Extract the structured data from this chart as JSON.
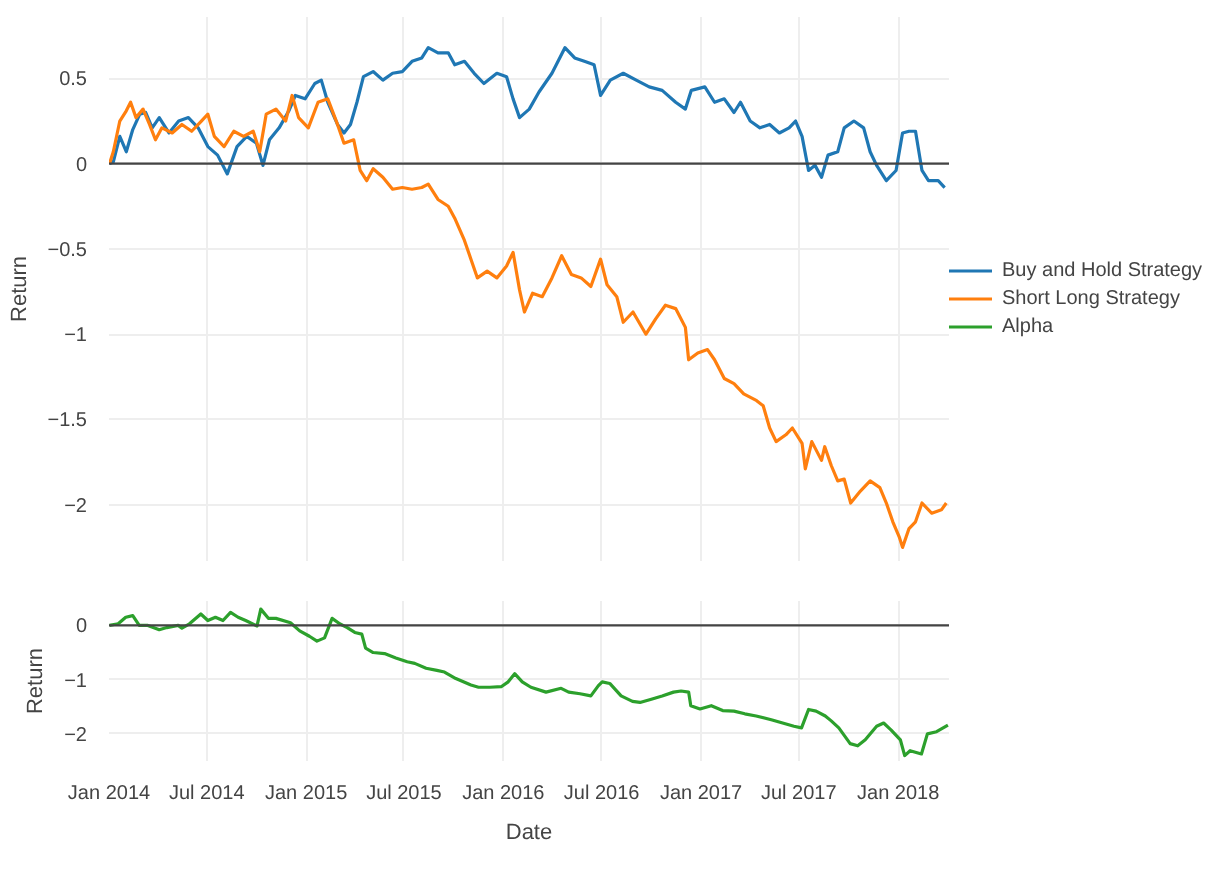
{
  "chart_data": [
    {
      "type": "line",
      "ylabel": "Return",
      "xlim": [
        "2014-01-01",
        "2018-04-05"
      ],
      "ylim": [
        -2.33,
        0.86
      ],
      "yticks": [
        0.5,
        0,
        {
          "value": -0.5,
          "label": "−0.5"
        },
        {
          "value": -1,
          "label": "−1"
        },
        {
          "value": -1.5,
          "label": "−1.5"
        },
        {
          "value": -2,
          "label": "−2"
        }
      ],
      "xticks": [
        {
          "value": "2014-01-01",
          "label": null
        },
        {
          "value": "2014-07-01",
          "label": null
        },
        {
          "value": "2015-01-01",
          "label": null
        },
        {
          "value": "2015-07-01",
          "label": null
        },
        {
          "value": "2016-01-01",
          "label": null
        },
        {
          "value": "2016-07-01",
          "label": null
        },
        {
          "value": "2017-01-01",
          "label": null
        },
        {
          "value": "2017-07-01",
          "label": null
        },
        {
          "value": "2018-01-01",
          "label": null
        }
      ],
      "tick_labels": "y",
      "grid": true,
      "legend": "right",
      "ref_lines": [
        {
          "axis": "y",
          "value": 0,
          "color": "#444444"
        }
      ],
      "series": [
        {
          "name": "Buy and Hold Strategy",
          "color": "#1f77b4",
          "x": [
            "2014-01-02",
            "2014-01-09",
            "2014-01-21",
            "2014-02-02",
            "2014-02-14",
            "2014-02-27",
            "2014-03-10",
            "2014-03-22",
            "2014-04-04",
            "2014-04-22",
            "2014-05-10",
            "2014-05-28",
            "2014-06-15",
            "2014-07-03",
            "2014-07-21",
            "2014-08-08",
            "2014-08-26",
            "2014-09-13",
            "2014-10-01",
            "2014-10-13",
            "2014-10-25",
            "2014-11-12",
            "2014-11-30",
            "2014-12-12",
            "2014-12-30",
            "2015-01-17",
            "2015-01-29",
            "2015-02-10",
            "2015-02-28",
            "2015-03-12",
            "2015-03-24",
            "2015-04-05",
            "2015-04-17",
            "2015-05-05",
            "2015-05-23",
            "2015-06-10",
            "2015-06-28",
            "2015-07-16",
            "2015-08-03",
            "2015-08-15",
            "2015-09-02",
            "2015-09-21",
            "2015-10-03",
            "2015-10-21",
            "2015-11-08",
            "2015-11-26",
            "2015-12-20",
            "2016-01-07",
            "2016-01-19",
            "2016-01-31",
            "2016-02-18",
            "2016-03-07",
            "2016-03-31",
            "2016-04-24",
            "2016-05-12",
            "2016-05-30",
            "2016-06-17",
            "2016-06-29",
            "2016-07-17",
            "2016-08-10",
            "2016-09-03",
            "2016-09-27",
            "2016-10-21",
            "2016-11-15",
            "2016-12-03",
            "2016-12-14",
            "2017-01-08",
            "2017-01-26",
            "2017-02-13",
            "2017-03-03",
            "2017-03-15",
            "2017-04-02",
            "2017-04-20",
            "2017-05-08",
            "2017-05-26",
            "2017-06-13",
            "2017-06-25",
            "2017-07-07",
            "2017-07-19",
            "2017-07-31",
            "2017-08-12",
            "2017-08-24",
            "2017-09-11",
            "2017-09-23",
            "2017-10-11",
            "2017-10-29",
            "2017-11-10",
            "2017-11-22",
            "2017-12-10",
            "2017-12-28",
            "2018-01-09",
            "2018-01-21",
            "2018-02-02",
            "2018-02-14",
            "2018-02-26",
            "2018-03-16",
            "2018-03-28"
          ],
          "values": [
            0,
            0.01,
            0.16,
            0.07,
            0.2,
            0.29,
            0.3,
            0.21,
            0.27,
            0.18,
            0.25,
            0.27,
            0.21,
            0.1,
            0.05,
            -0.06,
            0.1,
            0.16,
            0.12,
            -0.01,
            0.14,
            0.21,
            0.31,
            0.4,
            0.38,
            0.47,
            0.49,
            0.36,
            0.23,
            0.18,
            0.23,
            0.36,
            0.51,
            0.54,
            0.49,
            0.53,
            0.54,
            0.6,
            0.62,
            0.68,
            0.65,
            0.65,
            0.58,
            0.6,
            0.53,
            0.47,
            0.53,
            0.51,
            0.38,
            0.27,
            0.32,
            0.42,
            0.53,
            0.68,
            0.62,
            0.6,
            0.58,
            0.4,
            0.49,
            0.53,
            0.49,
            0.45,
            0.43,
            0.36,
            0.32,
            0.43,
            0.45,
            0.36,
            0.38,
            0.3,
            0.36,
            0.25,
            0.21,
            0.23,
            0.18,
            0.21,
            0.25,
            0.16,
            -0.04,
            -0.01,
            -0.08,
            0.05,
            0.07,
            0.21,
            0.25,
            0.21,
            0.07,
            -0.01,
            -0.1,
            -0.04,
            0.18,
            0.19,
            0.19,
            -0.04,
            -0.1,
            -0.1,
            -0.14
          ]
        },
        {
          "name": "Short Long Strategy",
          "color": "#ff7f0e",
          "x": [
            "2014-01-02",
            "2014-01-09",
            "2014-01-21",
            "2014-02-02",
            "2014-02-10",
            "2014-02-20",
            "2014-03-05",
            "2014-03-17",
            "2014-03-28",
            "2014-04-09",
            "2014-04-28",
            "2014-05-16",
            "2014-06-03",
            "2014-06-21",
            "2014-07-03",
            "2014-07-15",
            "2014-08-02",
            "2014-08-20",
            "2014-09-07",
            "2014-09-25",
            "2014-10-07",
            "2014-10-19",
            "2014-11-06",
            "2014-11-24",
            "2014-12-06",
            "2014-12-18",
            "2015-01-05",
            "2015-01-23",
            "2015-02-10",
            "2015-02-28",
            "2015-03-12",
            "2015-03-30",
            "2015-04-11",
            "2015-04-23",
            "2015-05-05",
            "2015-05-23",
            "2015-06-10",
            "2015-06-28",
            "2015-07-16",
            "2015-08-03",
            "2015-08-15",
            "2015-09-02",
            "2015-09-21",
            "2015-10-03",
            "2015-10-21",
            "2015-11-02",
            "2015-11-14",
            "2015-12-02",
            "2015-12-20",
            "2016-01-07",
            "2016-01-19",
            "2016-01-31",
            "2016-02-09",
            "2016-02-24",
            "2016-03-13",
            "2016-03-31",
            "2016-04-18",
            "2016-05-06",
            "2016-05-24",
            "2016-06-11",
            "2016-06-29",
            "2016-07-11",
            "2016-07-29",
            "2016-08-10",
            "2016-08-28",
            "2016-09-21",
            "2016-10-09",
            "2016-10-27",
            "2016-11-15",
            "2016-12-03",
            "2016-12-09",
            "2016-12-26",
            "2017-01-13",
            "2017-01-26",
            "2017-02-13",
            "2017-03-03",
            "2017-03-21",
            "2017-04-14",
            "2017-04-26",
            "2017-05-08",
            "2017-05-20",
            "2017-06-07",
            "2017-06-19",
            "2017-07-07",
            "2017-07-13",
            "2017-07-25",
            "2017-08-12",
            "2017-08-18",
            "2017-08-30",
            "2017-09-11",
            "2017-09-23",
            "2017-10-05",
            "2017-10-23",
            "2017-11-10",
            "2017-11-28",
            "2017-12-10",
            "2017-12-22",
            "2018-01-03",
            "2018-01-09",
            "2018-01-21",
            "2018-02-02",
            "2018-02-14",
            "2018-03-04",
            "2018-03-22",
            "2018-03-31"
          ],
          "values": [
            0,
            0.07,
            0.25,
            0.31,
            0.36,
            0.27,
            0.32,
            0.23,
            0.14,
            0.21,
            0.18,
            0.23,
            0.19,
            0.25,
            0.29,
            0.16,
            0.1,
            0.19,
            0.16,
            0.19,
            0.07,
            0.29,
            0.32,
            0.25,
            0.4,
            0.27,
            0.21,
            0.36,
            0.38,
            0.23,
            0.12,
            0.14,
            -0.04,
            -0.1,
            -0.03,
            -0.08,
            -0.15,
            -0.14,
            -0.15,
            -0.14,
            -0.12,
            -0.21,
            -0.25,
            -0.32,
            -0.45,
            -0.56,
            -0.67,
            -0.63,
            -0.67,
            -0.6,
            -0.52,
            -0.74,
            -0.87,
            -0.76,
            -0.78,
            -0.67,
            -0.54,
            -0.65,
            -0.67,
            -0.72,
            -0.56,
            -0.71,
            -0.78,
            -0.93,
            -0.87,
            -1.0,
            -0.91,
            -0.83,
            -0.85,
            -0.96,
            -1.15,
            -1.11,
            -1.09,
            -1.15,
            -1.26,
            -1.29,
            -1.35,
            -1.39,
            -1.42,
            -1.55,
            -1.63,
            -1.59,
            -1.55,
            -1.64,
            -1.79,
            -1.63,
            -1.74,
            -1.66,
            -1.77,
            -1.86,
            -1.85,
            -1.99,
            -1.92,
            -1.86,
            -1.9,
            -1.99,
            -2.1,
            -2.19,
            -2.25,
            -2.14,
            -2.1,
            -1.99,
            -2.05,
            -2.03,
            -1.99
          ]
        }
      ]
    },
    {
      "type": "line",
      "xlabel": "Date",
      "ylabel": "Return",
      "xlim": [
        "2014-01-01",
        "2018-04-05"
      ],
      "ylim": [
        -2.5,
        0.45
      ],
      "yticks": [
        0,
        {
          "value": -1,
          "label": "−1"
        },
        {
          "value": -2,
          "label": "−2"
        }
      ],
      "xticks": [
        {
          "value": "2014-01-01",
          "label": "Jan 2014"
        },
        {
          "value": "2014-07-01",
          "label": "Jul 2014"
        },
        {
          "value": "2015-01-01",
          "label": "Jan 2015"
        },
        {
          "value": "2015-07-01",
          "label": "Jul 2015"
        },
        {
          "value": "2016-01-01",
          "label": "Jan 2016"
        },
        {
          "value": "2016-07-01",
          "label": "Jul 2016"
        },
        {
          "value": "2017-01-01",
          "label": "Jan 2017"
        },
        {
          "value": "2017-07-01",
          "label": "Jul 2017"
        },
        {
          "value": "2018-01-01",
          "label": "Jan 2018"
        }
      ],
      "grid": true,
      "legend": "right",
      "ref_lines": [
        {
          "axis": "y",
          "value": 0,
          "color": "#444444"
        }
      ],
      "series": [
        {
          "name": "Alpha",
          "color": "#2ca02c",
          "x": [
            "2014-01-02",
            "2014-01-18",
            "2014-02-01",
            "2014-02-14",
            "2014-02-26",
            "2014-03-14",
            "2014-04-04",
            "2014-04-18",
            "2014-05-09",
            "2014-05-16",
            "2014-05-30",
            "2014-06-20",
            "2014-07-03",
            "2014-07-17",
            "2014-07-31",
            "2014-08-14",
            "2014-08-28",
            "2014-09-11",
            "2014-10-02",
            "2014-10-09",
            "2014-10-23",
            "2014-11-06",
            "2014-12-03",
            "2014-12-20",
            "2015-01-07",
            "2015-01-21",
            "2015-02-04",
            "2015-02-18",
            "2015-03-04",
            "2015-03-18",
            "2015-04-01",
            "2015-04-14",
            "2015-04-21",
            "2015-05-05",
            "2015-05-26",
            "2015-06-16",
            "2015-07-07",
            "2015-07-21",
            "2015-08-11",
            "2015-08-31",
            "2015-09-14",
            "2015-10-05",
            "2015-10-19",
            "2015-11-02",
            "2015-11-16",
            "2015-12-07",
            "2015-12-28",
            "2016-01-10",
            "2016-01-22",
            "2016-02-05",
            "2016-02-21",
            "2016-03-20",
            "2016-04-17",
            "2016-05-01",
            "2016-05-22",
            "2016-06-11",
            "2016-06-25",
            "2016-07-02",
            "2016-07-16",
            "2016-08-06",
            "2016-08-27",
            "2016-09-10",
            "2016-10-01",
            "2016-10-21",
            "2016-11-11",
            "2016-11-25",
            "2016-12-09",
            "2016-12-13",
            "2016-12-30",
            "2017-01-20",
            "2017-02-10",
            "2017-03-03",
            "2017-03-23",
            "2017-04-13",
            "2017-05-11",
            "2017-06-01",
            "2017-06-22",
            "2017-07-06",
            "2017-07-19",
            "2017-08-02",
            "2017-08-19",
            "2017-08-30",
            "2017-09-13",
            "2017-10-04",
            "2017-10-18",
            "2017-11-01",
            "2017-11-22",
            "2017-12-05",
            "2017-12-19",
            "2018-01-05",
            "2018-01-13",
            "2018-01-23",
            "2018-02-13",
            "2018-02-24",
            "2018-03-13",
            "2018-04-03"
          ],
          "values": [
            0,
            0.03,
            0.15,
            0.18,
            0,
            0,
            -0.08,
            -0.04,
            0,
            -0.05,
            0.03,
            0.21,
            0.09,
            0.15,
            0.09,
            0.24,
            0.15,
            0.09,
            -0.01,
            0.3,
            0.13,
            0.13,
            0.05,
            -0.1,
            -0.2,
            -0.29,
            -0.23,
            0.13,
            0.03,
            -0.04,
            -0.13,
            -0.16,
            -0.42,
            -0.5,
            -0.52,
            -0.6,
            -0.67,
            -0.7,
            -0.79,
            -0.83,
            -0.86,
            -0.98,
            -1.04,
            -1.1,
            -1.14,
            -1.14,
            -1.13,
            -1.04,
            -0.89,
            -1.04,
            -1.14,
            -1.23,
            -1.16,
            -1.23,
            -1.26,
            -1.3,
            -1.11,
            -1.04,
            -1.07,
            -1.3,
            -1.4,
            -1.42,
            -1.36,
            -1.3,
            -1.23,
            -1.21,
            -1.23,
            -1.48,
            -1.54,
            -1.48,
            -1.57,
            -1.58,
            -1.63,
            -1.67,
            -1.74,
            -1.8,
            -1.86,
            -1.89,
            -1.55,
            -1.58,
            -1.67,
            -1.76,
            -1.89,
            -2.18,
            -2.22,
            -2.11,
            -1.86,
            -1.8,
            -1.93,
            -2.11,
            -2.4,
            -2.31,
            -2.37,
            -2.0,
            -1.96,
            -1.84
          ]
        }
      ]
    }
  ]
}
